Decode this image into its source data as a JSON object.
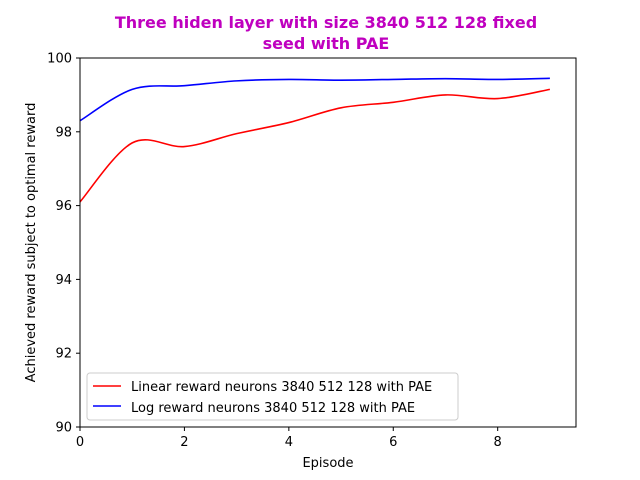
{
  "chart_data": {
    "type": "line",
    "title_lines": [
      "Three hiden layer with size 3840 512 128 fixed",
      "seed with PAE"
    ],
    "title_color": "#bf00bf",
    "xlabel": "Episode",
    "ylabel": "Achieved reward subject to optimal reward",
    "xlim": [
      0,
      9.5
    ],
    "ylim": [
      90,
      100
    ],
    "xticks": [
      0,
      2,
      4,
      6,
      8
    ],
    "yticks": [
      90,
      92,
      94,
      96,
      98,
      100
    ],
    "grid": false,
    "legend_position": "lower-left",
    "x": [
      0,
      1,
      2,
      3,
      4,
      5,
      6,
      7,
      8,
      9
    ],
    "series": [
      {
        "name": "Linear reward neurons 3840 512 128 with PAE",
        "color": "#ff0000",
        "values": [
          96.1,
          97.7,
          97.6,
          97.95,
          98.25,
          98.65,
          98.8,
          99.0,
          98.9,
          99.15
        ]
      },
      {
        "name": "Log reward neurons 3840 512 128 with PAE",
        "color": "#0000ff",
        "values": [
          98.3,
          99.15,
          99.25,
          99.38,
          99.42,
          99.4,
          99.42,
          99.44,
          99.42,
          99.45
        ]
      }
    ]
  }
}
